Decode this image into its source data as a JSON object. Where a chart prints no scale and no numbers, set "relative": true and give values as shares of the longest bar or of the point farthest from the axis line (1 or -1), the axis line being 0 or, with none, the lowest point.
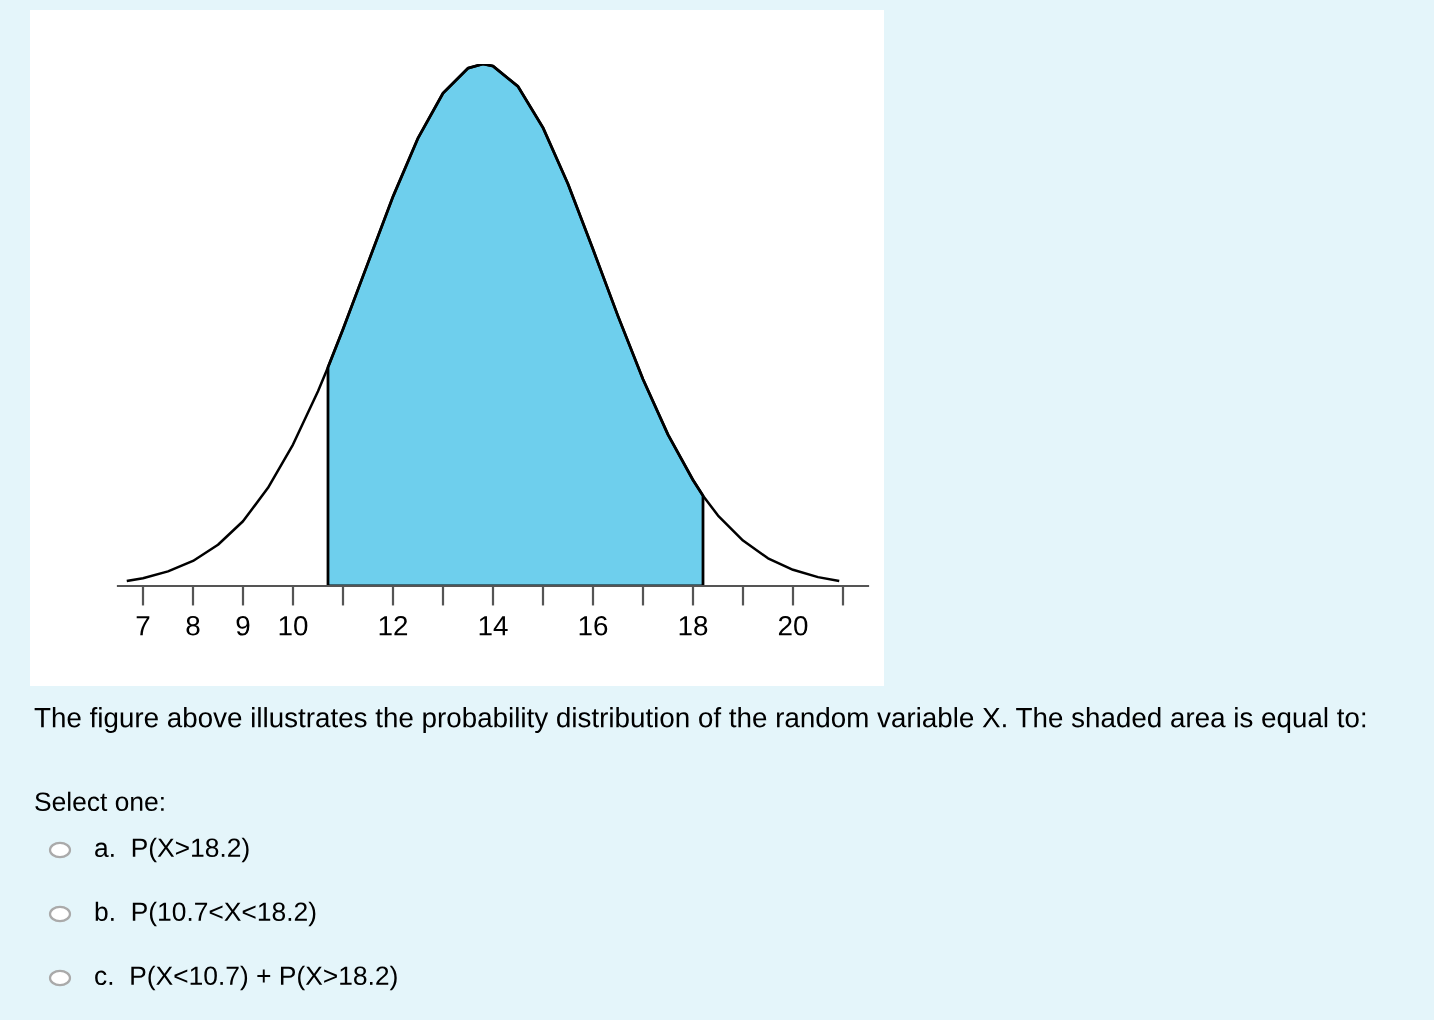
{
  "chart_data": {
    "type": "line",
    "relative": true,
    "marker": "none",
    "line_style": "solid",
    "grid": false,
    "legend": false,
    "tick_labels": "x",
    "xlim": [
      6.5,
      21.5
    ],
    "xticks": [
      7,
      8,
      9,
      10,
      {
        "value": 11,
        "label": null
      },
      12,
      {
        "value": 13,
        "label": null
      },
      14,
      {
        "value": 15,
        "label": null
      },
      16,
      {
        "value": 17,
        "label": null
      },
      18,
      {
        "value": 19,
        "label": null
      },
      20,
      {
        "value": 21,
        "label": null
      }
    ],
    "series": [
      {
        "color": "#000000",
        "x": [
          6.7,
          7,
          7.5,
          8,
          8.5,
          9,
          9.5,
          10,
          10.5,
          10.7,
          11,
          11.5,
          12,
          12.5,
          13,
          13.5,
          13.8,
          14,
          14.5,
          15,
          15.5,
          16,
          16.5,
          17,
          17.5,
          18,
          18.2,
          18.5,
          19,
          19.5,
          20,
          20.5,
          20.9
        ],
        "values": [
          0.01,
          0.015,
          0.028,
          0.048,
          0.079,
          0.124,
          0.188,
          0.271,
          0.373,
          0.419,
          0.492,
          0.619,
          0.746,
          0.858,
          0.944,
          0.992,
          1,
          0.996,
          0.957,
          0.878,
          0.77,
          0.645,
          0.517,
          0.396,
          0.29,
          0.203,
          0.173,
          0.135,
          0.087,
          0.053,
          0.031,
          0.017,
          0.01
        ]
      },
      {
        "type": "area",
        "color": "#6ecfed",
        "x": [
          10.7,
          11,
          11.5,
          12,
          12.5,
          13,
          13.5,
          13.8,
          14,
          14.5,
          15,
          15.5,
          16,
          16.5,
          17,
          17.5,
          18,
          18.2
        ],
        "values": [
          0.419,
          0.492,
          0.619,
          0.746,
          0.858,
          0.944,
          0.992,
          1,
          0.996,
          0.957,
          0.878,
          0.77,
          0.645,
          0.517,
          0.396,
          0.29,
          0.203,
          0.173
        ]
      }
    ],
    "annotations": [
      "The figure above illustrates the probability distribution of the random variable X. The shaded area is equal to:",
      "Select one:",
      "a.  P(X>18.2)",
      "b.  P(10.7<X<18.2)",
      "c.  P(X<10.7) + P(X>18.2)"
    ]
  }
}
